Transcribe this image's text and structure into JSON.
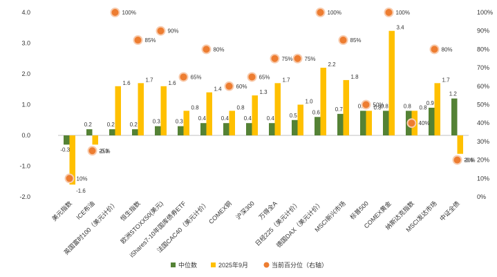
{
  "chart_data": {
    "type": "bar",
    "title": "",
    "categories": [
      "美元指数",
      "ICE布油",
      "英国富时100（美元计价）",
      "恒生指数",
      "欧洲STOXX50(美元)",
      "iShares7-10年国库债券ETF",
      "法国CAC40（美元计价）",
      "COMEX铜",
      "沪深300",
      "万得全A",
      "日经225（美元计价）",
      "德国DAX（美元计价）",
      "MSCI新兴市场",
      "标普500",
      "COMEX黄金",
      "纳斯达克指数",
      "MSCI发达市场",
      "中证全债"
    ],
    "series": [
      {
        "name": "中位数",
        "color": "#548235",
        "axis": "left",
        "values": [
          -0.3,
          0.2,
          0.2,
          0.2,
          0.3,
          0.3,
          0.4,
          0.4,
          0.4,
          0.4,
          0.5,
          0.6,
          0.7,
          0.8,
          0.8,
          0.8,
          0.9,
          1.2
        ]
      },
      {
        "name": "2025年9月",
        "color": "#FFC000",
        "axis": "left",
        "values": [
          -1.6,
          -0.3,
          1.6,
          1.7,
          1.6,
          0.8,
          1.4,
          0.8,
          1.3,
          1.7,
          1.0,
          2.2,
          1.8,
          0.8,
          3.4,
          0.8,
          1.7,
          -0.6
        ]
      },
      {
        "name": "当前百分位（右轴）",
        "color": "#ED7D31",
        "axis": "right",
        "values": [
          10,
          25,
          100,
          85,
          90,
          65,
          80,
          60,
          65,
          75,
          75,
          100,
          85,
          50,
          100,
          40,
          80,
          20
        ],
        "labels": [
          "10%",
          "25%",
          "100%",
          "85%",
          "90%",
          "65%",
          "80%",
          "60%",
          "65%",
          "75%",
          "75%",
          "100%",
          "85%",
          "50%",
          "100%",
          "40%",
          "80%",
          "20%"
        ]
      }
    ],
    "ylim": [
      -2.0,
      4.0
    ],
    "yticks": [
      "-2.0",
      "-1.0",
      "0.0",
      "1.0",
      "2.0",
      "3.0",
      "4.0"
    ],
    "y2lim": [
      0,
      100
    ],
    "y2ticks": [
      "0%",
      "10%",
      "20%",
      "30%",
      "40%",
      "50%",
      "60%",
      "70%",
      "80%",
      "90%",
      "100%"
    ],
    "median_labels": [
      "-0.3",
      "0.2",
      "0.2",
      "0.2",
      "0.3",
      "0.3",
      "0.4",
      "0.4",
      "0.4",
      "0.4",
      "0.5",
      "0.6",
      "0.7",
      "0.8",
      "0.8",
      "0.8",
      "0.9",
      "1.2"
    ],
    "sep_labels": [
      "-1.6",
      "-0.3",
      "1.6",
      "1.7",
      "1.6",
      "0.8",
      "1.4",
      "0.8",
      "1.3",
      "1.7",
      "1.0",
      "2.2",
      "1.8",
      "0.8",
      "3.4",
      "0.8",
      "1.7",
      "-0.6"
    ],
    "grid": false,
    "legend_position": "bottom"
  }
}
